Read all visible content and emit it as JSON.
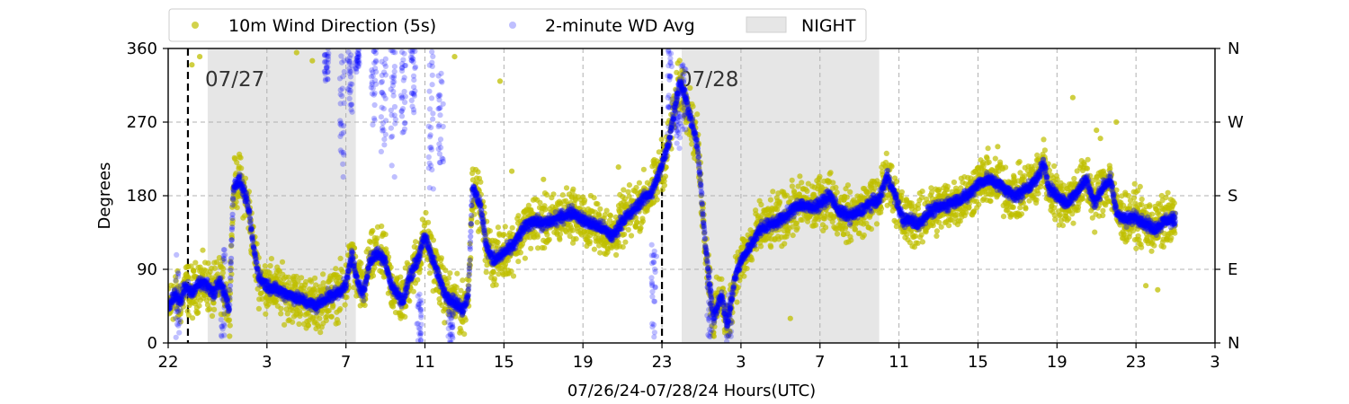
{
  "chart_data": {
    "type": "scatter",
    "title": "",
    "xlabel": "07/26/24-07/28/24  Hours(UTC)",
    "ylabel": "Degrees",
    "xlim": [
      0,
      53
    ],
    "ylim": [
      0,
      360
    ],
    "x_ticks": [
      {
        "v": 0,
        "label": "22"
      },
      {
        "v": 5,
        "label": "3"
      },
      {
        "v": 9,
        "label": "7"
      },
      {
        "v": 13,
        "label": "11"
      },
      {
        "v": 17,
        "label": "15"
      },
      {
        "v": 21,
        "label": "19"
      },
      {
        "v": 25,
        "label": "23"
      },
      {
        "v": 29,
        "label": "3"
      },
      {
        "v": 33,
        "label": "7"
      },
      {
        "v": 37,
        "label": "11"
      },
      {
        "v": 41,
        "label": "15"
      },
      {
        "v": 45,
        "label": "19"
      },
      {
        "v": 49,
        "label": "23"
      },
      {
        "v": 53,
        "label": "3"
      }
    ],
    "y_ticks": [
      0,
      90,
      180,
      270,
      360
    ],
    "y2_ticks": [
      {
        "v": 0,
        "label": "N"
      },
      {
        "v": 90,
        "label": "E"
      },
      {
        "v": 180,
        "label": "S"
      },
      {
        "v": 270,
        "label": "W"
      },
      {
        "v": 360,
        "label": "N"
      }
    ],
    "grid": true,
    "legend_position": "top-center-outside",
    "legend": {
      "wd5s": "10m Wind Direction (5s)",
      "wd2m": "2-minute WD Avg",
      "night": "NIGHT"
    },
    "colors": {
      "wd5s": "#bfbf00",
      "wd2m": "#0000ff",
      "night": "#e6e6e6",
      "day_line": "#000000"
    },
    "night_periods": [
      [
        2,
        9.5
      ],
      [
        26,
        36
      ]
    ],
    "day_markers": [
      {
        "x": 1,
        "label": "07/27"
      },
      {
        "x": 25,
        "label": "07/28"
      }
    ],
    "series": [
      {
        "key": "wd2m",
        "name": "2-minute WD Avg",
        "trend": [
          [
            0.0,
            40
          ],
          [
            0.3,
            60
          ],
          [
            0.6,
            50
          ],
          [
            0.9,
            70
          ],
          [
            1.2,
            60
          ],
          [
            1.6,
            75
          ],
          [
            2.0,
            70
          ],
          [
            2.3,
            60
          ],
          [
            2.6,
            75
          ],
          [
            2.9,
            60
          ],
          [
            3.1,
            40
          ],
          [
            3.3,
            190
          ],
          [
            3.6,
            200
          ],
          [
            3.9,
            180
          ],
          [
            4.1,
            160
          ],
          [
            4.3,
            120
          ],
          [
            4.6,
            80
          ],
          [
            5.0,
            70
          ],
          [
            5.5,
            65
          ],
          [
            6.0,
            60
          ],
          [
            6.5,
            55
          ],
          [
            7.0,
            50
          ],
          [
            7.5,
            45
          ],
          [
            8.0,
            55
          ],
          [
            8.5,
            60
          ],
          [
            9.0,
            70
          ],
          [
            9.3,
            110
          ],
          [
            9.5,
            80
          ],
          [
            9.9,
            60
          ],
          [
            10.2,
            100
          ],
          [
            10.6,
            110
          ],
          [
            11.0,
            100
          ],
          [
            11.3,
            70
          ],
          [
            11.6,
            60
          ],
          [
            11.9,
            50
          ],
          [
            12.2,
            80
          ],
          [
            12.6,
            100
          ],
          [
            13.0,
            130
          ],
          [
            13.3,
            110
          ],
          [
            13.7,
            80
          ],
          [
            14.0,
            60
          ],
          [
            14.5,
            50
          ],
          [
            14.9,
            40
          ],
          [
            15.2,
            60
          ],
          [
            15.4,
            190
          ],
          [
            15.8,
            170
          ],
          [
            16.1,
            120
          ],
          [
            16.5,
            100
          ],
          [
            17.0,
            110
          ],
          [
            17.5,
            120
          ],
          [
            18.0,
            140
          ],
          [
            18.5,
            150
          ],
          [
            19.0,
            145
          ],
          [
            19.5,
            150
          ],
          [
            20.0,
            155
          ],
          [
            20.5,
            160
          ],
          [
            21.0,
            150
          ],
          [
            21.5,
            145
          ],
          [
            22.0,
            140
          ],
          [
            22.5,
            130
          ],
          [
            23.0,
            150
          ],
          [
            23.5,
            160
          ],
          [
            24.0,
            175
          ],
          [
            24.5,
            185
          ],
          [
            24.9,
            210
          ],
          [
            25.3,
            240
          ],
          [
            25.6,
            280
          ],
          [
            25.9,
            320
          ],
          [
            26.2,
            300
          ],
          [
            26.5,
            270
          ],
          [
            26.8,
            240
          ],
          [
            27.2,
            120
          ],
          [
            27.6,
            30
          ],
          [
            28.0,
            60
          ],
          [
            28.3,
            20
          ],
          [
            28.7,
            80
          ],
          [
            29.0,
            100
          ],
          [
            29.5,
            120
          ],
          [
            30.0,
            140
          ],
          [
            30.5,
            145
          ],
          [
            31.0,
            150
          ],
          [
            31.5,
            160
          ],
          [
            32.0,
            170
          ],
          [
            32.5,
            165
          ],
          [
            33.0,
            170
          ],
          [
            33.5,
            180
          ],
          [
            34.0,
            160
          ],
          [
            34.5,
            155
          ],
          [
            35.0,
            160
          ],
          [
            35.5,
            170
          ],
          [
            36.0,
            175
          ],
          [
            36.4,
            205
          ],
          [
            36.8,
            180
          ],
          [
            37.2,
            150
          ],
          [
            37.6,
            150
          ],
          [
            38.0,
            145
          ],
          [
            38.5,
            160
          ],
          [
            39.0,
            165
          ],
          [
            39.5,
            170
          ],
          [
            40.0,
            175
          ],
          [
            40.5,
            180
          ],
          [
            41.0,
            195
          ],
          [
            41.5,
            200
          ],
          [
            42.0,
            195
          ],
          [
            42.5,
            185
          ],
          [
            43.0,
            180
          ],
          [
            43.5,
            190
          ],
          [
            44.0,
            200
          ],
          [
            44.3,
            220
          ],
          [
            44.6,
            190
          ],
          [
            45.0,
            180
          ],
          [
            45.5,
            170
          ],
          [
            46.0,
            185
          ],
          [
            46.5,
            200
          ],
          [
            46.9,
            170
          ],
          [
            47.3,
            190
          ],
          [
            47.7,
            200
          ],
          [
            48.0,
            160
          ],
          [
            48.5,
            150
          ],
          [
            49.0,
            155
          ],
          [
            49.5,
            145
          ],
          [
            50.0,
            140
          ],
          [
            50.5,
            150
          ],
          [
            51.0,
            150
          ]
        ],
        "bursts": [
          [
            0.5,
            5,
            110
          ],
          [
            2.8,
            0,
            120
          ],
          [
            8.0,
            320,
            360
          ],
          [
            8.8,
            200,
            360
          ],
          [
            9.2,
            280,
            360
          ],
          [
            9.6,
            330,
            360
          ],
          [
            10.4,
            260,
            360
          ],
          [
            10.9,
            230,
            360
          ],
          [
            11.4,
            200,
            360
          ],
          [
            11.9,
            250,
            360
          ],
          [
            12.4,
            280,
            360
          ],
          [
            12.7,
            0,
            60
          ],
          [
            13.3,
            180,
            360
          ],
          [
            13.8,
            220,
            360
          ],
          [
            14.3,
            0,
            40
          ],
          [
            24.6,
            0,
            120
          ],
          [
            25.4,
            250,
            360
          ],
          [
            25.8,
            230,
            310
          ],
          [
            26.1,
            260,
            340
          ],
          [
            27.4,
            0,
            90
          ],
          [
            28.4,
            0,
            60
          ]
        ]
      },
      {
        "key": "wd5s",
        "name": "10m Wind Direction (5s)",
        "spread": 45,
        "outliers": [
          [
            1.2,
            340
          ],
          [
            1.6,
            350
          ],
          [
            6.5,
            355
          ],
          [
            7.3,
            345
          ],
          [
            14.5,
            350
          ],
          [
            16.8,
            320
          ],
          [
            17.4,
            210
          ],
          [
            19.0,
            200
          ],
          [
            22.8,
            215
          ],
          [
            31.5,
            30
          ],
          [
            42.0,
            240
          ],
          [
            45.8,
            300
          ],
          [
            47.0,
            260
          ],
          [
            48.0,
            270
          ],
          [
            47.2,
            250
          ],
          [
            49.5,
            70
          ],
          [
            50.1,
            65
          ]
        ]
      }
    ]
  }
}
